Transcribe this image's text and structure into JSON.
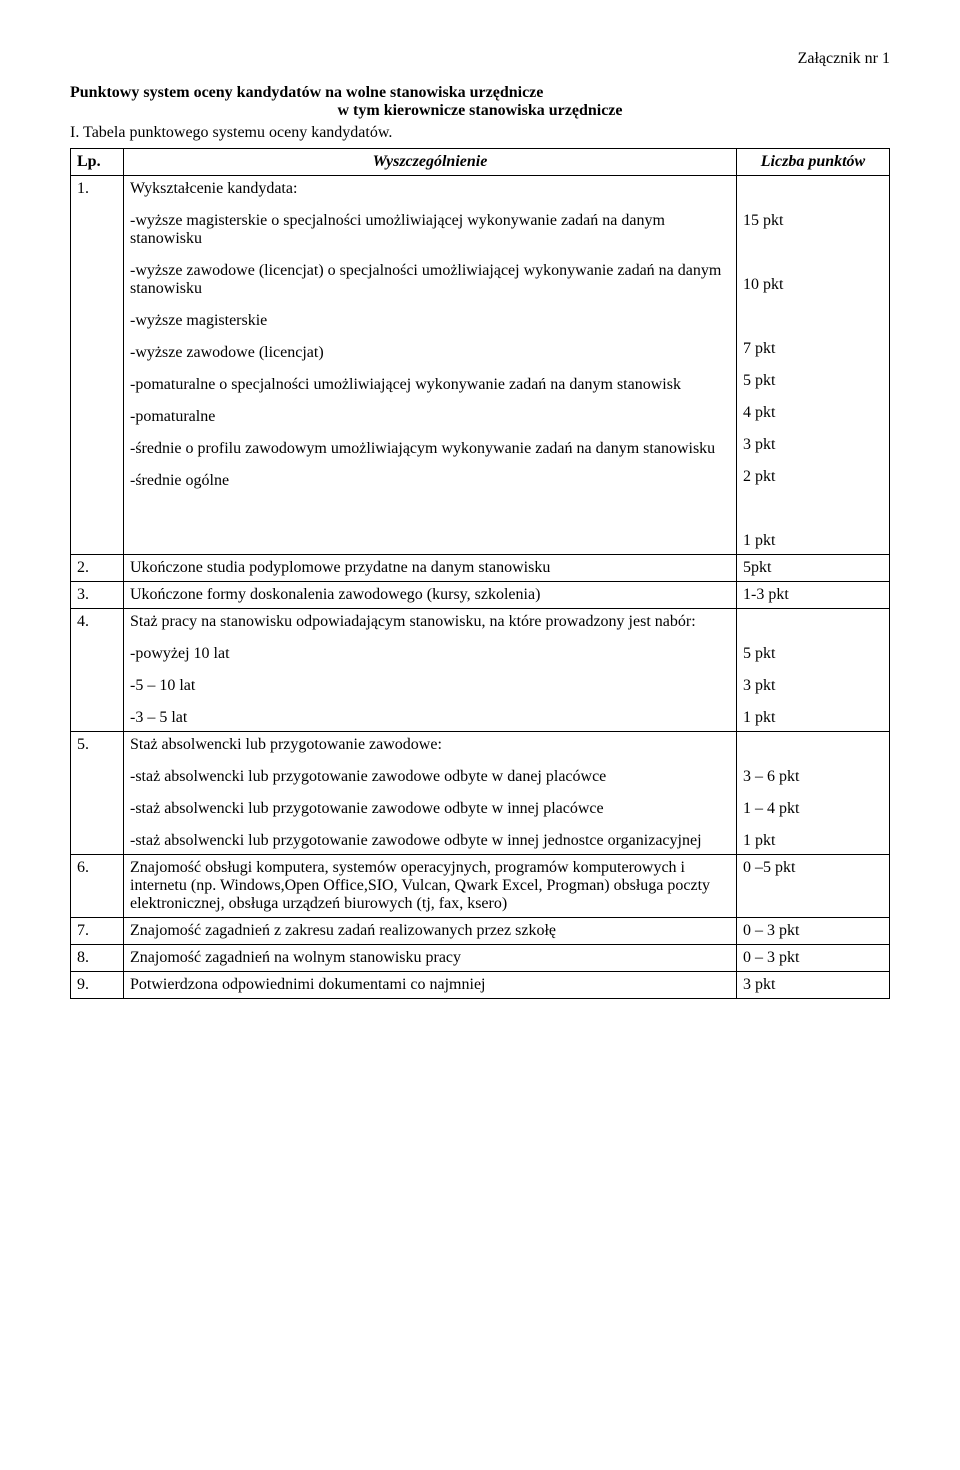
{
  "attachment": "Załącznik nr 1",
  "title_line1": "Punktowy system oceny kandydatów na wolne stanowiska urzędnicze",
  "title_line2": "w tym kierownicze stanowiska urzędnicze",
  "subtitle": "I. Tabela punktowego systemu oceny kandydatów.",
  "header": {
    "lp": "Lp.",
    "desc": "Wyszczególnienie",
    "points": "Liczba punktów"
  },
  "rows": {
    "r1": {
      "lp": "1.",
      "heading": "Wykształcenie kandydata:",
      "items": [
        "-wyższe magisterskie o specjalności umożliwiającej wykonywanie zadań na danym stanowisku",
        "-wyższe zawodowe (licencjat) o specjalności umożliwiającej wykonywanie zadań na danym stanowisku",
        "-wyższe magisterskie",
        "-wyższe zawodowe (licencjat)",
        "-pomaturalne o specjalności umożliwiającej wykonywanie zadań na danym stanowisk",
        "-pomaturalne",
        "-średnie o profilu zawodowym umożliwiającym wykonywanie zadań na danym stanowisku",
        "-średnie ogólne"
      ],
      "points": [
        "15 pkt",
        "10 pkt",
        "7 pkt",
        "5 pkt",
        "4 pkt",
        "3 pkt",
        "2 pkt",
        "1 pkt"
      ]
    },
    "r2": {
      "lp": "2.",
      "desc": "Ukończone studia podyplomowe przydatne na danym stanowisku",
      "points": "5pkt"
    },
    "r3": {
      "lp": "3.",
      "desc": "Ukończone formy doskonalenia zawodowego (kursy, szkolenia)",
      "points": "1-3 pkt"
    },
    "r4": {
      "lp": "4.",
      "heading": "Staż pracy na stanowisku odpowiadającym stanowisku, na które prowadzony jest nabór:",
      "items": [
        "-powyżej 10 lat",
        "-5 – 10 lat",
        "-3 – 5 lat"
      ],
      "points": [
        "5 pkt",
        "3 pkt",
        "1 pkt"
      ]
    },
    "r5": {
      "lp": "5.",
      "heading": "Staż absolwencki lub przygotowanie zawodowe:",
      "items": [
        "-staż absolwencki lub przygotowanie zawodowe odbyte w danej placówce",
        "-staż absolwencki lub przygotowanie zawodowe odbyte w innej placówce",
        "-staż absolwencki lub przygotowanie zawodowe odbyte w innej jednostce organizacyjnej"
      ],
      "points": [
        "3 – 6 pkt",
        "1 – 4 pkt",
        "1 pkt"
      ]
    },
    "r6": {
      "lp": "6.",
      "desc": "Znajomość obsługi komputera, systemów operacyjnych, programów komputerowych i internetu (np. Windows,Open Office,SIO, Vulcan, Qwark Excel, Progman) obsługa poczty elektronicznej, obsługa urządzeń biurowych (tj, fax, ksero)",
      "points": "0 –5 pkt"
    },
    "r7": {
      "lp": "7.",
      "desc": "Znajomość zagadnień z zakresu zadań realizowanych przez szkołę",
      "points": "0 – 3 pkt"
    },
    "r8": {
      "lp": "8.",
      "desc": "Znajomość zagadnień na wolnym stanowisku pracy",
      "points": "0 – 3 pkt"
    },
    "r9": {
      "lp": "9.",
      "desc": "Potwierdzona odpowiednimi dokumentami  co najmniej",
      "points": "3 pkt"
    }
  }
}
